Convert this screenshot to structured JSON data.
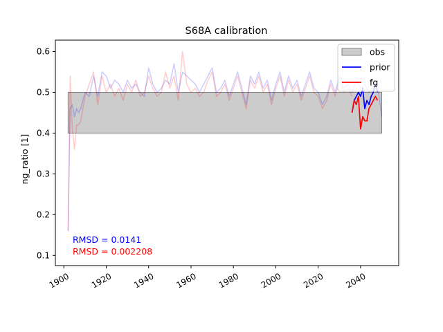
{
  "chart_data": {
    "type": "line",
    "title": "S68A calibration",
    "xlabel": "",
    "ylabel": "ng_ratio [1]",
    "xlim": [
      1896,
      2058
    ],
    "ylim": [
      0.075,
      0.628
    ],
    "xticks": [
      1900,
      1920,
      1940,
      1960,
      1980,
      2000,
      2020,
      2040
    ],
    "yticks": [
      0.1,
      0.2,
      0.3,
      0.4,
      0.5,
      0.6
    ],
    "xtick_labels": [
      "1900",
      "1920",
      "1940",
      "1960",
      "1980",
      "2000",
      "2020",
      "2040"
    ],
    "ytick_labels": [
      "0.1",
      "0.2",
      "0.3",
      "0.4",
      "0.5",
      "0.6"
    ],
    "grid": false,
    "legend_position": "top-right",
    "obs_band": {
      "x": [
        1902,
        2050
      ],
      "y": [
        0.4,
        0.5
      ],
      "color": "#cccccc",
      "edge_color": "#808080"
    },
    "series": [
      {
        "name": "prior",
        "color": "#0000ff",
        "role": "background",
        "x": [
          1902,
          1903,
          1904,
          1905,
          1906,
          1907,
          1908,
          1910,
          1912,
          1914,
          1916,
          1918,
          1920,
          1922,
          1924,
          1926,
          1928,
          1930,
          1932,
          1934,
          1936,
          1938,
          1940,
          1942,
          1944,
          1946,
          1948,
          1950,
          1952,
          1954,
          1956,
          1958,
          1960,
          1962,
          1964,
          1966,
          1968,
          1970,
          1972,
          1974,
          1976,
          1978,
          1980,
          1982,
          1984,
          1986,
          1988,
          1990,
          1992,
          1994,
          1996,
          1998,
          2000,
          2002,
          2004,
          2006,
          2008,
          2010,
          2012,
          2014,
          2016,
          2018,
          2020,
          2022,
          2024,
          2026,
          2028,
          2030,
          2032,
          2034,
          2036,
          2038,
          2040,
          2042,
          2044,
          2046,
          2048,
          2050
        ],
        "y": [
          0.16,
          0.46,
          0.47,
          0.44,
          0.46,
          0.45,
          0.46,
          0.5,
          0.49,
          0.54,
          0.49,
          0.55,
          0.54,
          0.51,
          0.53,
          0.52,
          0.5,
          0.53,
          0.51,
          0.52,
          0.5,
          0.49,
          0.56,
          0.52,
          0.5,
          0.51,
          0.53,
          0.52,
          0.57,
          0.5,
          0.55,
          0.54,
          0.53,
          0.52,
          0.5,
          0.52,
          0.54,
          0.56,
          0.5,
          0.51,
          0.53,
          0.49,
          0.52,
          0.55,
          0.51,
          0.47,
          0.54,
          0.52,
          0.55,
          0.51,
          0.53,
          0.48,
          0.52,
          0.55,
          0.5,
          0.54,
          0.51,
          0.53,
          0.49,
          0.52,
          0.55,
          0.51,
          0.5,
          0.47,
          0.49,
          0.53,
          0.5,
          0.54,
          0.51,
          0.52,
          0.5,
          0.53,
          0.51,
          0.52,
          0.5,
          0.51,
          0.52,
          0.44
        ]
      },
      {
        "name": "fg",
        "color": "#ff0000",
        "role": "background",
        "x": [
          1902,
          1903,
          1904,
          1905,
          1906,
          1907,
          1908,
          1910,
          1912,
          1914,
          1916,
          1918,
          1920,
          1922,
          1924,
          1926,
          1928,
          1930,
          1932,
          1934,
          1936,
          1938,
          1940,
          1942,
          1944,
          1946,
          1948,
          1950,
          1952,
          1954,
          1956,
          1958,
          1960,
          1962,
          1964,
          1966,
          1968,
          1970,
          1972,
          1974,
          1976,
          1978,
          1980,
          1982,
          1984,
          1986,
          1988,
          1990,
          1992,
          1994,
          1996,
          1998,
          2000,
          2002,
          2004,
          2006,
          2008,
          2010,
          2012,
          2014,
          2016,
          2018,
          2020,
          2022,
          2024,
          2026,
          2028,
          2030,
          2032,
          2034,
          2036
        ],
        "y": [
          0.16,
          0.54,
          0.41,
          0.36,
          0.42,
          0.42,
          0.43,
          0.49,
          0.52,
          0.55,
          0.47,
          0.54,
          0.5,
          0.52,
          0.49,
          0.51,
          0.48,
          0.52,
          0.5,
          0.53,
          0.49,
          0.5,
          0.54,
          0.51,
          0.49,
          0.5,
          0.55,
          0.51,
          0.54,
          0.48,
          0.6,
          0.52,
          0.5,
          0.51,
          0.49,
          0.5,
          0.53,
          0.55,
          0.49,
          0.5,
          0.52,
          0.48,
          0.51,
          0.54,
          0.5,
          0.46,
          0.53,
          0.51,
          0.54,
          0.5,
          0.52,
          0.47,
          0.51,
          0.54,
          0.49,
          0.53,
          0.5,
          0.52,
          0.48,
          0.51,
          0.54,
          0.5,
          0.49,
          0.46,
          0.48,
          0.52,
          0.49,
          0.53,
          0.5,
          0.51,
          0.49
        ]
      },
      {
        "name": "prior",
        "color": "#0000ff",
        "role": "foreground",
        "x": [
          2036,
          2037,
          2038,
          2039,
          2040,
          2041,
          2042,
          2043,
          2044,
          2045,
          2046,
          2047,
          2048
        ],
        "y": [
          0.45,
          0.48,
          0.49,
          0.5,
          0.49,
          0.51,
          0.46,
          0.48,
          0.47,
          0.49,
          0.5,
          0.52,
          0.5
        ]
      },
      {
        "name": "fg",
        "color": "#ff0000",
        "role": "foreground",
        "x": [
          2036,
          2037,
          2038,
          2039,
          2040,
          2041,
          2042,
          2043,
          2044,
          2045,
          2046,
          2047,
          2048
        ],
        "y": [
          0.45,
          0.48,
          0.47,
          0.49,
          0.41,
          0.44,
          0.43,
          0.43,
          0.46,
          0.47,
          0.48,
          0.49,
          0.48
        ]
      }
    ],
    "legend": [
      {
        "label": "obs",
        "kind": "patch",
        "color": "#cccccc"
      },
      {
        "label": "prior",
        "kind": "line",
        "color": "#0000ff"
      },
      {
        "label": "fg",
        "kind": "line",
        "color": "#ff0000"
      }
    ],
    "annotations": [
      {
        "text": "RMSD = 0.0141",
        "color": "#0000ff"
      },
      {
        "text": "RMSD = 0.002208",
        "color": "#ff0000"
      }
    ]
  }
}
